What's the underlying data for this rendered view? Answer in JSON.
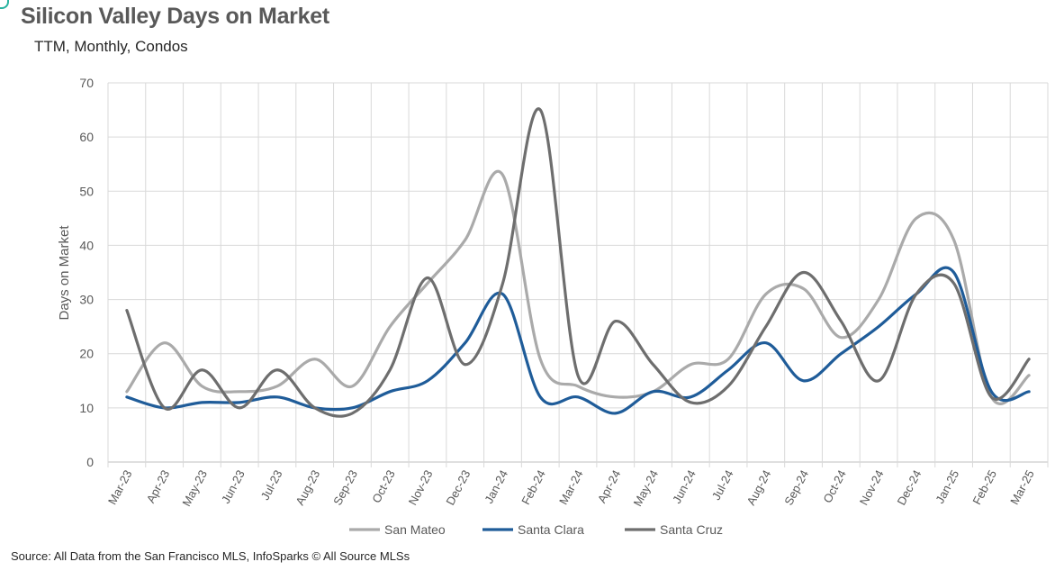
{
  "chart_data": {
    "type": "line",
    "title": "Silicon Valley Days on Market",
    "subtitle": "TTM, Monthly, Condos",
    "ylabel": "Days on Market",
    "xlabel": "",
    "ylim": [
      0,
      70
    ],
    "yticks": [
      0,
      10,
      20,
      30,
      40,
      50,
      60,
      70
    ],
    "grid": true,
    "legend_position": "bottom",
    "categories": [
      "Mar-23",
      "Apr-23",
      "May-23",
      "Jun-23",
      "Jul-23",
      "Aug-23",
      "Sep-23",
      "Oct-23",
      "Nov-23",
      "Dec-23",
      "Jan-24",
      "Feb-24",
      "Mar-24",
      "Apr-24",
      "May-24",
      "Jun-24",
      "Jul-24",
      "Aug-24",
      "Sep-24",
      "Oct-24",
      "Nov-24",
      "Dec-24",
      "Jan-25",
      "Feb-25",
      "Mar-25"
    ],
    "series": [
      {
        "name": "San Mateo",
        "color": "#aaaaaa",
        "values": [
          13,
          22,
          14,
          13,
          14,
          19,
          14,
          25,
          33,
          41,
          53,
          19,
          14,
          12,
          13,
          18,
          19,
          31,
          32,
          23,
          30,
          45,
          41,
          12,
          16
        ]
      },
      {
        "name": "Santa Clara",
        "color": "#1f5c99",
        "values": [
          12,
          10,
          11,
          11,
          12,
          10,
          10,
          13,
          15,
          22,
          31,
          12,
          12,
          9,
          13,
          12,
          17,
          22,
          15,
          20,
          25,
          31,
          35,
          13,
          13
        ]
      },
      {
        "name": "Santa Cruz",
        "color": "#6e6e6e",
        "values": [
          28,
          10,
          17,
          10,
          17,
          10,
          9,
          17,
          34,
          18,
          33,
          65,
          16,
          26,
          18,
          11,
          14,
          25,
          35,
          26,
          15,
          31,
          33,
          12,
          19
        ]
      }
    ]
  },
  "source": "Source: All Data from the San Francisco MLS, InfoSparks © All Source MLSs"
}
